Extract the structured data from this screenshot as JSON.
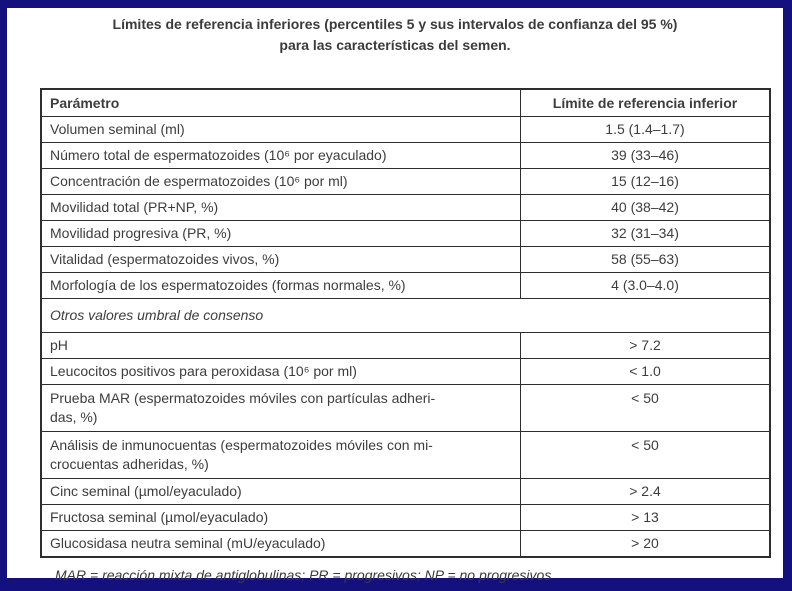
{
  "page": {
    "title": "Límites de referencia inferiores (percentiles 5 y sus intervalos de confianza del 95 %)\npara las características del semen.",
    "footnote": "MAR = reacción mixta de antiglobulinas; PR = progresivos; NP = no progresivos"
  },
  "colors": {
    "page_border": "#14117f",
    "table_line": "#2e2e2e",
    "text": "#3d3d3d"
  },
  "table": {
    "headers": {
      "parameter": "Parámetro",
      "limit": "Límite de referencia inferior"
    },
    "main_rows": [
      {
        "param": "Volumen seminal (ml)",
        "value": "1.5 (1.4–1.7)"
      },
      {
        "param": "Número total de espermatozoides (10⁶ por eyaculado)",
        "value": "39 (33–46)"
      },
      {
        "param": "Concentración de espermatozoides (10⁶ por ml)",
        "value": "15 (12–16)"
      },
      {
        "param": "Movilidad total (PR+NP, %)",
        "value": "40 (38–42)"
      },
      {
        "param": "Movilidad progresiva (PR, %)",
        "value": "32 (31–34)"
      },
      {
        "param": "Vitalidad (espermatozoides vivos, %)",
        "value": "58 (55–63)"
      },
      {
        "param": "Morfología de los espermatozoides (formas normales, %)",
        "value": "4 (3.0–4.0)"
      }
    ],
    "section_label": "Otros valores umbral de consenso",
    "threshold_rows": [
      {
        "param": "pH",
        "value": "> 7.2"
      },
      {
        "param": "Leucocitos positivos para peroxidasa (10⁶ por ml)",
        "value": "< 1.0"
      },
      {
        "param": "Prueba MAR (espermatozoides móviles con partículas adheri-\ndas, %)",
        "value": "< 50"
      },
      {
        "param": "Análisis de inmunocuentas (espermatozoides móviles con mi-\ncrocuentas adheridas, %)",
        "value": "< 50"
      },
      {
        "param": "Cinc seminal (µmol/eyaculado)",
        "value": "> 2.4"
      },
      {
        "param": "Fructosa seminal (µmol/eyaculado)",
        "value": "> 13"
      },
      {
        "param": "Glucosidasa neutra seminal (mU/eyaculado)",
        "value": "> 20"
      }
    ]
  }
}
